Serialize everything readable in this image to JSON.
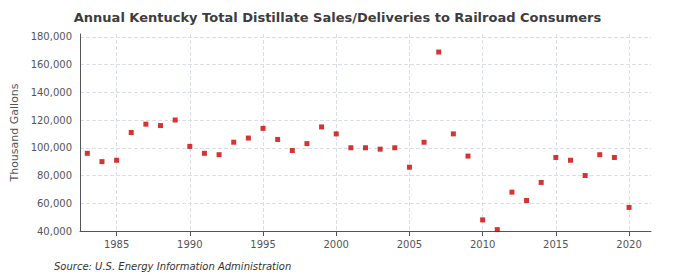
{
  "chart_data": {
    "type": "scatter",
    "title": "Annual Kentucky Total Distillate Sales/Deliveries to Railroad Consumers",
    "ylabel": "Thousand Gallons",
    "annotations": [
      "Source: U.S. Energy Information Administration"
    ],
    "x": [
      1983,
      1984,
      1985,
      1986,
      1987,
      1988,
      1989,
      1990,
      1991,
      1992,
      1993,
      1994,
      1995,
      1996,
      1997,
      1998,
      1999,
      2000,
      2001,
      2002,
      2003,
      2004,
      2005,
      2006,
      2007,
      2008,
      2009,
      2010,
      2011,
      2012,
      2013,
      2014,
      2015,
      2016,
      2017,
      2018,
      2019,
      2020
    ],
    "values": [
      96000,
      90000,
      91000,
      111000,
      117000,
      116000,
      120000,
      101000,
      96000,
      95000,
      104000,
      107000,
      114000,
      106000,
      98000,
      103000,
      115000,
      110000,
      100000,
      100000,
      99000,
      100000,
      86000,
      104000,
      169000,
      110000,
      94000,
      48000,
      41000,
      68000,
      62000,
      75000,
      93000,
      91000,
      80000,
      95000,
      93000,
      57000
    ],
    "color": "#cc0000",
    "marker": "square",
    "xlim": [
      1982.5,
      2021.5
    ],
    "ylim": [
      40000,
      182000
    ],
    "xticks": [
      1985,
      1990,
      1995,
      2000,
      2005,
      2010,
      2015,
      2020
    ],
    "yticks": [
      {
        "value": 40000,
        "label": "40,000"
      },
      {
        "value": 60000,
        "label": "60,000"
      },
      {
        "value": 80000,
        "label": "80,000"
      },
      {
        "value": 100000,
        "label": "100,000"
      },
      {
        "value": 120000,
        "label": "120,000"
      },
      {
        "value": 140000,
        "label": "140,000"
      },
      {
        "value": 160000,
        "label": "160,000"
      },
      {
        "value": 180000,
        "label": "180,000"
      }
    ],
    "grid": true
  }
}
